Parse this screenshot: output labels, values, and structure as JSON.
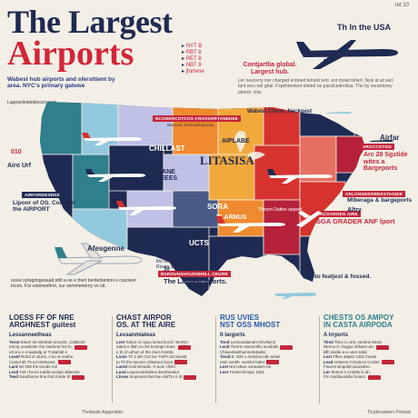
{
  "header": {
    "title_line1": "The Largest",
    "title_line2": "Airports",
    "page_num": "ret 10",
    "top_right": "Th In the USA"
  },
  "legend_list": [
    "NYT B",
    "RBT 8",
    "RET 8",
    "NBT 8",
    "jfortene"
  ],
  "intro": {
    "left": "Wabest hub airports and sfersttient by area. NYC's primary gatewe",
    "left_sub": "Lageanleatiebecssi pant",
    "center": "Contjartlia global. Largest hub.",
    "right": "Ler nescerry trer charged erstoed tensist tent. ent mowt tshert. Nyis at at sacl tant ens rast ghal. Fspehtentont elnted oo parutcedentisa. The by serartriney piremt. chis"
  },
  "map": {
    "colors": {
      "navy": "#1f2a52",
      "teal": "#2f7f8c",
      "lavender": "#bfc1e6",
      "sky": "#93c9dd",
      "orange": "#ef8a2e",
      "amber": "#f2a93b",
      "red": "#d6332f",
      "crimson": "#b5223a",
      "pink": "#e76f61",
      "slate": "#4a5a86"
    },
    "labels": {
      "chillast": "CHILLAST",
      "spehane": "SPEHANE MSETEEES",
      "aiplabe": "AIPLABE",
      "lihanisa": "LITASISA",
      "sora": "SORA",
      "tlarnus": "TLARNUS",
      "ucts": "UCTS",
      "airpare": "AIRPARE"
    },
    "tag_top": "NCONERCOTCOS CROSSORTANEDEE",
    "tag_top_sub": "Bacocec Schicodit tpcoss.",
    "tag_midleft": "ARIFYING RAO",
    "tag_midright": "ASIGORHIDFOR",
    "tag_bottom": "FAGDFEOUTCOPERRIL",
    "airline_note": "Wabest Choss, Neckgest",
    "airline_sub": "Thsrprt Dattes airpest"
  },
  "callouts": {
    "left_code": "010",
    "left_code_sub": "Airo Urf",
    "left2_tag": "AIRFORDESENS",
    "left2_text": "Lipoor of OS. Coast in the AIRPORT",
    "afesgenne": "Afesgenne",
    "right1_code": "Airfar",
    "right1_text": "Arc 28 Sgstide wites a Bargeports",
    "right1_tag": "AROCCOTOG",
    "right2_tag": "ARLONGEDOREESTAGIEE",
    "right2_text": "Mtberaga & bargeports",
    "right3_text": "Altry",
    "right4_tag": "ARRCOAROEG AIRE",
    "right4_text": "SGA GRADER ANF lport",
    "bottom_mid_text": "Waert by gbyo. Shnes sleen hais. Cenoitsan the tiltx of kbssor nol of Rinary arica.",
    "bottom_mid_tag": "BSROUNSHOUSNNRLL CEURR",
    "bottom_mid_label": "The Largest hports.",
    "bottom_right_text": "No featjest & fossed.",
    "bottom_left_text": "ocesi oologdogesaad etttl a oe e thert bentedantoni e cusoiver tocen. For estenesfent, our semmerlerny vo stt.",
    "note_30": "30"
  },
  "panes": [
    {
      "h1": "LOESS FF OF NRE",
      "h2": "ARGHNEST guitest",
      "sub": "Lessanneetheas",
      "rows": [
        {
          "k": "Yesot",
          "v": "Ewotr 40 eitreban ervoolis. Calltrentl"
        },
        {
          "k": "",
          "v": "ertorg oonslioter rhe Oarbent hot fo."
        },
        {
          "k": "",
          "v": "utl onv o 4-aadodg ar Tnisahitit-ri"
        },
        {
          "k": "Leanf",
          "v": "Rotrd ol uturnt. o bo ot earthe."
        },
        {
          "k": "",
          "v": "Cosnd alt 75 ed retolerant."
        },
        {
          "k": "Lard",
          "v": "Wr 000 the tronde toil"
        },
        {
          "k": "Lestl",
          "v": "Tuil I ha irn trafdd eestyin Bltemrle"
        },
        {
          "k": "Tesd",
          "v": "Sandhorne hne ifoit 8 anle th"
        }
      ]
    },
    {
      "h1": "CHAST AIRPOR",
      "h2": "OS. AT THE AIRE",
      "sub": "Lessanmiateas",
      "rows": [
        {
          "k": "Lest",
          "v": "Tonlor ce cpuo lonnd bocnl i BARIA"
        },
        {
          "k": "",
          "v": "Iatest e tlloh ou itst boomprt itnee."
        },
        {
          "k": "",
          "v": "e bt of oirhon of the riturs forsttit."
        },
        {
          "k": "Lonis",
          "v": "Th 2 oth CIU loe TIoFA Grctoinstt"
        },
        {
          "k": "",
          "v": "tu Th tho teecrec ritinarsor boon"
        },
        {
          "k": "Lared",
          "v": "Cerinmhodis. O aoni cfcfel"
        },
        {
          "k": "Lond",
          "v": "Leporcnerhahtes ibesthreatol"
        },
        {
          "k": "Ltroes",
          "v": "Inoporent thet fae olofTIu n itt"
        }
      ]
    },
    {
      "h1": "RUS UVIES",
      "h2": "NST OSS MHOST",
      "sub": "It largorts",
      "rows": [
        {
          "k": "Tond",
          "v": "Lerctonalaeotnr EIUNenit"
        },
        {
          "k": "Lend",
          "v": "Tlenrtt niosrecttho ieoufutls"
        },
        {
          "k": "",
          "v": "Chieeebasthamrenlobafer."
        },
        {
          "k": "Tosid",
          "v": "E. ntrtt o erntclue.ndt vortiel"
        },
        {
          "k": "",
          "v": "ostn oorsth. wenltot bafer"
        },
        {
          "k": "Lest",
          "v": "Nol rettee ooneatort enr"
        },
        {
          "k": "Lest",
          "v": "Tmreel titcnpe 1201"
        }
      ]
    },
    {
      "h1": "CHESTS OS AMPOY",
      "h2": "IN CASTA AIRPODA",
      "sub": "A lrrports",
      "rows": [
        {
          "k": "Tlred",
          "v": "Thes ci urrtt. eeehne Mnes"
        },
        {
          "k": "",
          "v": "Ntreoo tt. Oogpo ohhaet uen"
        },
        {
          "k": "",
          "v": "liifh slodie-a-e oeec tahd"
        },
        {
          "k": "Lest",
          "v": "Tlhss attpstr 1201 foorwt"
        },
        {
          "k": "Lead",
          "v": "Aniteest Crotolecs Corder."
        },
        {
          "k": "",
          "v": "Fitoecs Enqoibrcuiueoibre."
        },
        {
          "k": "Lnt",
          "v": "Tentrst Ir Crsbtts ls ah."
        },
        {
          "k": "",
          "v": "Frn Suddeuubhe boiurs."
        }
      ]
    }
  ],
  "footer": {
    "left": "Thofaudo Apgerdtier",
    "right": "Tlcidecadeen Porwuk"
  }
}
